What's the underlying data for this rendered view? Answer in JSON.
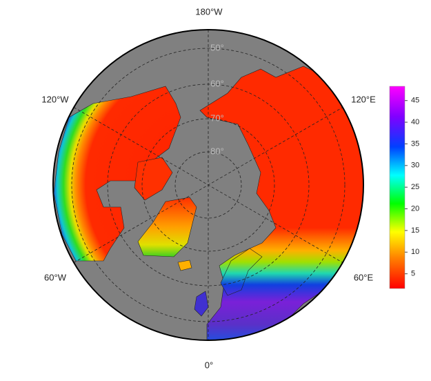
{
  "map": {
    "longitude_labels": [
      "180°W",
      "120°W",
      "120°E",
      "60°W",
      "60°E",
      "0°"
    ],
    "latitude_labels": [
      "50°",
      "60°",
      "70°",
      "80°"
    ]
  },
  "colorbar": {
    "range": [
      1.6,
      48.3
    ],
    "ticks": [
      5,
      10,
      15,
      20,
      25,
      30,
      35,
      40,
      45
    ]
  }
}
